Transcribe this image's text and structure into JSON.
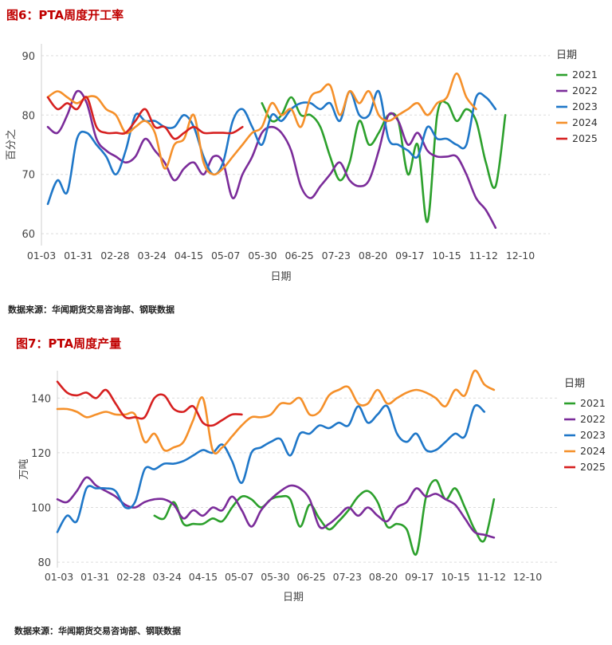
{
  "figures": [
    {
      "title": "图6：PTA周度开工率",
      "source": "数据来源：华闻期货交易咨询部、钢联数据"
    },
    {
      "title": "图7：PTA周度产量",
      "source": "数据来源：华闻期货交易咨询部、钢联数据"
    }
  ],
  "colors": {
    "2021": "#2ca02c",
    "2022": "#7b2c9a",
    "2023": "#1f77c8",
    "2024": "#f5902a",
    "2025": "#d62020"
  },
  "chart_data": [
    {
      "type": "line",
      "title": "",
      "xlabel": "日期",
      "ylabel": "百分之",
      "ylim": [
        58,
        92
      ],
      "yticks": [
        60,
        70,
        80,
        90
      ],
      "x_tick_labels": [
        "01-03",
        "01-31",
        "02-28",
        "03-24",
        "04-15",
        "05-07",
        "05-30",
        "06-25",
        "07-23",
        "08-20",
        "09-17",
        "10-15",
        "11-12",
        "12-10"
      ],
      "x_count": 52,
      "legend_title": "日期",
      "legend_position": "right",
      "grid": "horizontal dashed",
      "series": [
        {
          "name": "2021",
          "values": [
            null,
            null,
            null,
            null,
            null,
            null,
            null,
            null,
            null,
            null,
            null,
            null,
            null,
            null,
            null,
            null,
            null,
            null,
            null,
            null,
            null,
            null,
            82,
            79,
            80,
            83,
            80,
            80,
            78,
            73,
            69,
            72,
            79,
            75,
            77,
            80,
            79,
            70,
            75,
            62,
            80,
            82,
            79,
            81,
            79,
            72,
            68,
            80,
            null,
            null,
            null,
            null
          ]
        },
        {
          "name": "2022",
          "values": [
            78,
            77,
            80,
            84,
            82,
            76,
            74,
            73,
            72,
            73,
            76,
            74,
            72,
            69,
            71,
            72,
            70,
            73,
            72,
            66,
            70,
            73,
            77,
            78,
            77,
            74,
            68,
            66,
            68,
            70,
            72,
            69,
            68,
            69,
            74,
            80,
            79,
            75,
            77,
            74,
            73,
            73,
            73,
            70,
            66,
            64,
            61,
            null,
            null,
            null,
            null,
            null
          ]
        },
        {
          "name": "2023",
          "values": [
            65,
            69,
            67,
            76,
            77,
            75,
            73,
            70,
            74,
            80,
            79,
            79,
            78,
            78,
            80,
            78,
            73,
            70,
            72,
            79,
            81,
            78,
            75,
            80,
            79,
            81,
            82,
            82,
            81,
            82,
            79,
            84,
            80,
            80,
            84,
            76,
            75,
            74,
            73,
            78,
            76,
            76,
            75,
            75,
            83,
            83,
            81,
            null,
            null,
            null,
            null,
            null
          ]
        },
        {
          "name": "2024",
          "values": [
            83,
            84,
            83,
            82,
            83,
            83,
            81,
            80,
            77,
            78,
            79,
            77,
            71,
            75,
            76,
            80,
            72,
            70,
            71,
            73,
            75,
            77,
            78,
            82,
            80,
            81,
            78,
            83,
            84,
            85,
            80,
            84,
            82,
            84,
            80,
            79,
            80,
            81,
            82,
            80,
            82,
            83,
            87,
            83,
            81,
            null,
            null,
            null,
            null,
            null,
            null,
            null
          ]
        },
        {
          "name": "2025",
          "values": [
            83,
            81,
            82,
            81,
            83,
            78,
            77,
            77,
            77,
            79,
            81,
            78,
            78,
            76,
            77,
            78,
            77,
            77,
            77,
            77,
            78,
            null,
            null,
            null,
            null,
            null,
            null,
            null,
            null,
            null,
            null,
            null,
            null,
            null,
            null,
            null,
            null,
            null,
            null,
            null,
            null,
            null,
            null,
            null,
            null,
            null,
            null,
            null,
            null,
            null,
            null,
            null
          ]
        }
      ]
    },
    {
      "type": "line",
      "title": "",
      "xlabel": "日期",
      "ylabel": "万吨",
      "ylim": [
        78,
        150
      ],
      "yticks": [
        80,
        100,
        120,
        140
      ],
      "x_tick_labels": [
        "01-03",
        "01-31",
        "02-28",
        "03-24",
        "04-15",
        "05-07",
        "05-30",
        "06-25",
        "07-23",
        "08-20",
        "09-17",
        "10-15",
        "11-12",
        "12-10"
      ],
      "x_count": 52,
      "legend_title": "日期",
      "legend_position": "right",
      "grid": "horizontal dashed",
      "series": [
        {
          "name": "2021",
          "values": [
            null,
            null,
            null,
            null,
            null,
            null,
            null,
            null,
            null,
            null,
            97,
            96,
            102,
            94,
            94,
            94,
            96,
            95,
            100,
            104,
            103,
            100,
            103,
            104,
            103,
            93,
            101,
            96,
            92,
            95,
            99,
            104,
            106,
            102,
            93,
            94,
            92,
            83,
            104,
            110,
            103,
            107,
            100,
            92,
            88,
            103,
            null,
            null,
            null,
            null,
            null,
            null
          ]
        },
        {
          "name": "2022",
          "values": [
            103,
            102,
            106,
            111,
            108,
            106,
            104,
            101,
            100,
            102,
            103,
            103,
            101,
            96,
            99,
            97,
            100,
            99,
            104,
            99,
            93,
            99,
            103,
            106,
            108,
            107,
            103,
            93,
            94,
            97,
            100,
            97,
            100,
            97,
            95,
            100,
            102,
            107,
            104,
            105,
            103,
            101,
            96,
            91,
            90,
            89,
            null,
            null,
            null,
            null,
            null,
            null
          ]
        },
        {
          "name": "2023",
          "values": [
            91,
            97,
            95,
            107,
            107,
            107,
            106,
            100,
            102,
            114,
            114,
            116,
            116,
            117,
            119,
            121,
            120,
            123,
            117,
            109,
            120,
            122,
            124,
            125,
            119,
            127,
            127,
            130,
            129,
            131,
            130,
            137,
            131,
            134,
            137,
            127,
            124,
            127,
            121,
            121,
            124,
            127,
            126,
            137,
            135,
            null,
            null,
            null,
            null,
            null,
            null,
            null
          ]
        },
        {
          "name": "2024",
          "values": [
            136,
            136,
            135,
            133,
            134,
            135,
            134,
            134,
            134,
            124,
            127,
            121,
            122,
            124,
            132,
            140,
            121,
            122,
            126,
            130,
            133,
            133,
            134,
            138,
            138,
            140,
            134,
            135,
            141,
            143,
            144,
            138,
            138,
            143,
            138,
            140,
            142,
            143,
            142,
            140,
            137,
            143,
            141,
            150,
            145,
            143,
            null,
            null,
            null,
            null,
            null,
            null
          ]
        },
        {
          "name": "2025",
          "values": [
            146,
            142,
            141,
            142,
            140,
            143,
            138,
            133,
            133,
            133,
            140,
            141,
            136,
            135,
            137,
            131,
            130,
            132,
            134,
            134,
            null,
            null,
            null,
            null,
            null,
            null,
            null,
            null,
            null,
            null,
            null,
            null,
            null,
            null,
            null,
            null,
            null,
            null,
            null,
            null,
            null,
            null,
            null,
            null,
            null,
            null,
            null,
            null,
            null,
            null,
            null,
            null
          ]
        }
      ]
    }
  ]
}
